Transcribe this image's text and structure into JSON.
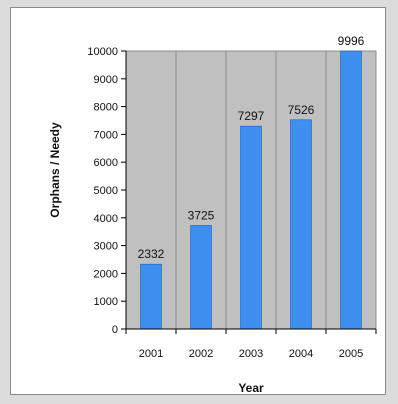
{
  "chart_data": {
    "type": "bar",
    "title": "",
    "xlabel": "Year",
    "ylabel": "Orphans / Needy",
    "categories": [
      "2001",
      "2002",
      "2003",
      "2004",
      "2005"
    ],
    "values": [
      2332,
      3725,
      7297,
      7526,
      9996
    ],
    "data_labels": [
      "2332",
      "3725",
      "7297",
      "7526",
      "9996"
    ],
    "ylim": [
      0,
      10000
    ],
    "yticks": [
      0,
      1000,
      2000,
      3000,
      4000,
      5000,
      6000,
      7000,
      8000,
      9000,
      10000
    ],
    "ytick_labels": [
      "0",
      "1000",
      "2000",
      "3000",
      "4000",
      "5000",
      "6000",
      "7000",
      "8000",
      "9000",
      "10000"
    ],
    "grid": "vertical",
    "legend": "none",
    "colors": {
      "bar": "#3f8ff0",
      "bar_edge": "#1e5fb8",
      "plot_background": "#c0c0c0",
      "gridline": "#8c8c8c"
    }
  }
}
